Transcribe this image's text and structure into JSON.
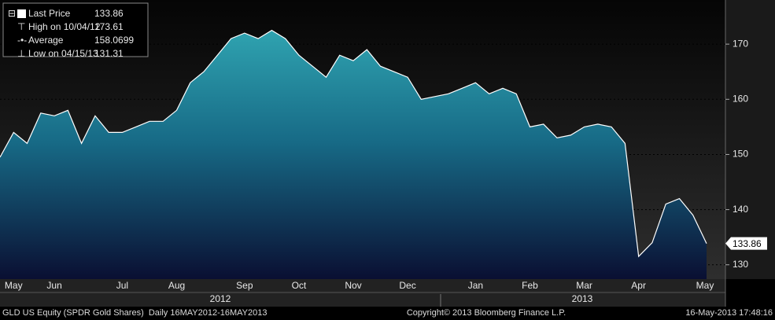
{
  "chart_data": {
    "type": "area",
    "categories": [
      null,
      "May",
      null,
      null,
      "Jun",
      null,
      null,
      null,
      null,
      "Jul",
      null,
      null,
      null,
      "Aug",
      null,
      null,
      null,
      null,
      "Sep",
      null,
      null,
      null,
      "Oct",
      null,
      null,
      null,
      "Nov",
      null,
      null,
      null,
      "Dec",
      null,
      null,
      null,
      null,
      "Jan",
      null,
      null,
      null,
      "Feb",
      null,
      null,
      null,
      "Mar",
      null,
      null,
      null,
      "Apr",
      null,
      null,
      null,
      null,
      "May"
    ],
    "years": [
      "2012",
      "2013"
    ],
    "series": [
      {
        "name": "Last Price",
        "color": "#ffffff",
        "values": [
          149.5,
          154,
          152,
          157.5,
          157,
          158,
          152,
          157,
          154,
          154,
          155,
          156,
          156,
          158,
          163,
          165,
          168,
          171,
          172,
          171,
          172.5,
          171,
          168,
          166,
          164,
          168,
          167,
          169,
          166,
          165,
          164,
          160,
          160.5,
          161,
          162,
          163,
          161,
          162,
          161,
          155,
          155.5,
          153,
          153.5,
          155,
          155.5,
          155,
          152,
          131.5,
          134,
          141,
          142,
          139,
          133.86
        ]
      }
    ],
    "legend_stats": [
      {
        "label": "High on 10/04/12",
        "value": 173.61
      },
      {
        "label": "Average",
        "value": 158.0699
      },
      {
        "label": "Low on 04/15/13",
        "value": 131.31
      }
    ],
    "last_price_label": 133.86,
    "ylim": [
      127.4,
      178
    ],
    "yticks": [
      130,
      140,
      150,
      160,
      170
    ],
    "grid": true,
    "footer": {
      "left": "GLD US Equity (SPDR Gold Shares)  Daily 16MAY2012-16MAY2013",
      "center": "Copyright© 2013 Bloomberg Finance L.P.",
      "right": "16-May-2013 17:48:16"
    }
  }
}
